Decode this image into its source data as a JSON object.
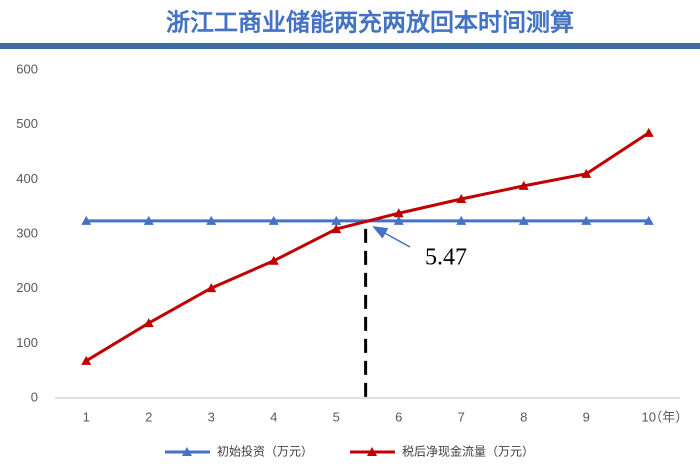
{
  "chart_data": {
    "type": "line",
    "title": "浙江工商业储能两充两放回本时间测算",
    "categories": [
      "1",
      "2",
      "3",
      "4",
      "5",
      "6",
      "7",
      "8",
      "9",
      "10"
    ],
    "x_unit": "（年）",
    "series": [
      {
        "name": "初始投资（万元）",
        "color": "#4472c4",
        "values": [
          324,
          324,
          324,
          324,
          324,
          324,
          324,
          324,
          324,
          324
        ]
      },
      {
        "name": "税后净现金流量（万元）",
        "color": "#c00000",
        "values": [
          68,
          137,
          201,
          251,
          309,
          338,
          364,
          388,
          410,
          485
        ]
      }
    ],
    "annotation": 5.47,
    "ylim": [
      0,
      600
    ],
    "yticks": [
      0,
      100,
      200,
      300,
      400,
      500,
      600
    ],
    "legend": "bottom"
  }
}
